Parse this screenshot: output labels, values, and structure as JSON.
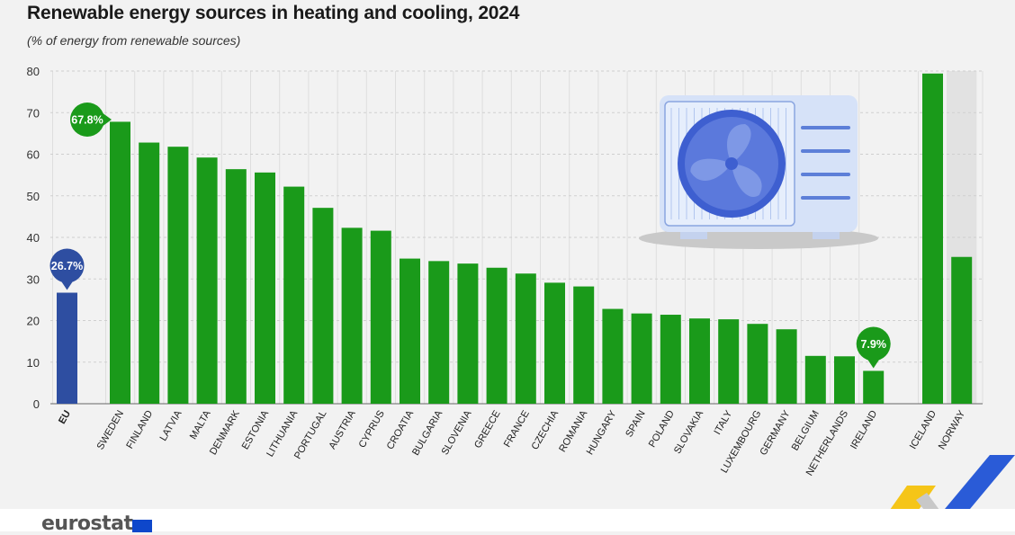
{
  "chart_data": {
    "type": "bar",
    "title": "Renewable energy sources in heating and cooling, 2024",
    "subtitle": "(% of energy from renewable sources)",
    "ylim": [
      0,
      80
    ],
    "yticks": [
      0,
      10,
      20,
      30,
      40,
      50,
      60,
      70,
      80
    ],
    "grid": true,
    "groups": [
      {
        "name": "eu",
        "categories": [
          "EU"
        ],
        "values": [
          26.7
        ],
        "color": "#2e4ea1"
      },
      {
        "name": "countries",
        "categories": [
          "SWEDEN",
          "FINLAND",
          "LATVIA",
          "MALTA",
          "DENMARK",
          "ESTONIA",
          "LITHUANIA",
          "PORTUGAL",
          "AUSTRIA",
          "CYPRUS",
          "CROATIA",
          "BULGARIA",
          "SLOVENIA",
          "GREECE",
          "FRANCE",
          "CZECHIA",
          "ROMANIA",
          "HUNGARY",
          "SPAIN",
          "POLAND",
          "SLOVAKIA",
          "ITALY",
          "LUXEMBOURG",
          "GERMANY",
          "BELGIUM",
          "NETHERLANDS",
          "IRELAND"
        ],
        "values": [
          67.8,
          62.8,
          61.8,
          59.2,
          56.4,
          55.6,
          52.2,
          47.1,
          42.3,
          41.6,
          34.9,
          34.3,
          33.7,
          32.7,
          31.3,
          29.1,
          28.2,
          22.8,
          21.7,
          21.4,
          20.5,
          20.3,
          19.2,
          17.9,
          11.5,
          11.4,
          7.9
        ],
        "color": "#1a9a1a"
      },
      {
        "name": "efta",
        "categories": [
          "ICELAND",
          "NORWAY"
        ],
        "values": [
          79.4,
          35.3
        ],
        "color": "#1a9a1a"
      }
    ],
    "callouts": [
      {
        "category": "EU",
        "label": "26.7%"
      },
      {
        "category": "SWEDEN",
        "label": "67.8%"
      },
      {
        "category": "IRELAND",
        "label": "7.9%"
      }
    ]
  },
  "colors": {
    "eu": "#2e4ea1",
    "country": "#1a9a1a",
    "grid": "#cfcfcf",
    "axis": "#666666",
    "efta_band": "#e2e2e2"
  },
  "icons": {
    "illustration": "heat-pump-icon",
    "brand": "eurostat-logo"
  },
  "branding": {
    "logo_text": "eurostat"
  }
}
